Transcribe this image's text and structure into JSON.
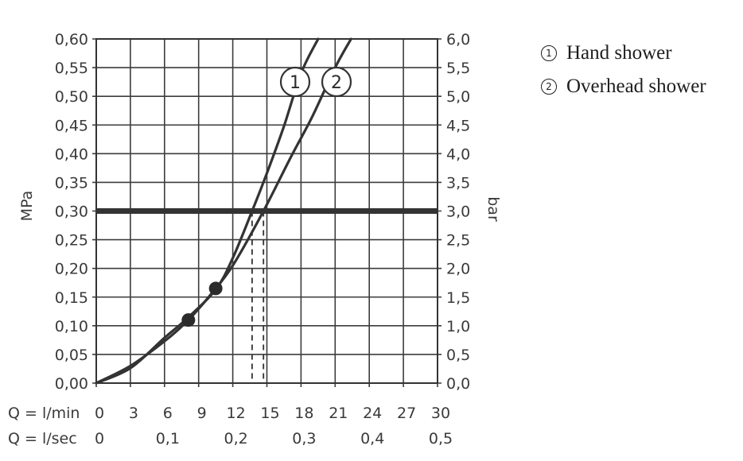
{
  "chart_data": {
    "type": "line",
    "x_axis": {
      "label": "Q = l/min",
      "range": [
        0,
        30
      ],
      "ticks": [
        "0",
        "3",
        "6",
        "9",
        "12",
        "15",
        "18",
        "21",
        "24",
        "27",
        "30"
      ]
    },
    "x_axis_secondary": {
      "label": "Q = l/sec",
      "range": [
        0,
        0.5
      ],
      "ticks": [
        {
          "value": 0,
          "label": "0"
        },
        {
          "value": 0.1,
          "label": "0,1"
        },
        {
          "value": 0.2,
          "label": "0,2"
        },
        {
          "value": 0.3,
          "label": "0,3"
        },
        {
          "value": 0.4,
          "label": "0,4"
        },
        {
          "value": 0.5,
          "label": "0,5"
        }
      ]
    },
    "y_axis": {
      "label": "MPa",
      "range": [
        0,
        0.6
      ],
      "ticks": [
        "0,00",
        "0,05",
        "0,10",
        "0,15",
        "0,20",
        "0,25",
        "0,30",
        "0,35",
        "0,40",
        "0,45",
        "0,50",
        "0,55",
        "0,60"
      ]
    },
    "y_axis_secondary": {
      "label": "bar",
      "range": [
        0,
        6
      ],
      "ticks": [
        "0,0",
        "0,5",
        "1,0",
        "1,5",
        "2,0",
        "2,5",
        "3,0",
        "3,5",
        "4,0",
        "4,5",
        "5,0",
        "5,5",
        "6,0"
      ]
    },
    "grid": true,
    "reference_line": {
      "y": 0.3
    },
    "series": [
      {
        "marker": "1",
        "name": "Hand shower",
        "x": [
          0,
          3,
          6,
          8,
          10.5,
          12,
          13.7,
          15,
          16.5,
          18,
          19.5
        ],
        "y": [
          0,
          0.026,
          0.079,
          0.113,
          0.163,
          0.218,
          0.3,
          0.366,
          0.448,
          0.54,
          0.6
        ],
        "highlight_point": {
          "x": 10.5,
          "y": 0.165
        },
        "dashed_drop_x": 13.7
      },
      {
        "marker": "2",
        "name": "Overhead shower",
        "x": [
          0,
          3,
          6,
          8.1,
          10,
          12,
          14.7,
          17,
          19,
          21,
          22.4
        ],
        "y": [
          0,
          0.03,
          0.073,
          0.11,
          0.153,
          0.205,
          0.3,
          0.39,
          0.465,
          0.55,
          0.6
        ],
        "highlight_point": {
          "x": 8.1,
          "y": 0.11
        },
        "dashed_drop_x": 14.7
      }
    ]
  },
  "legend": [
    {
      "num": "1",
      "label": "Hand shower"
    },
    {
      "num": "2",
      "label": "Overhead shower"
    }
  ]
}
